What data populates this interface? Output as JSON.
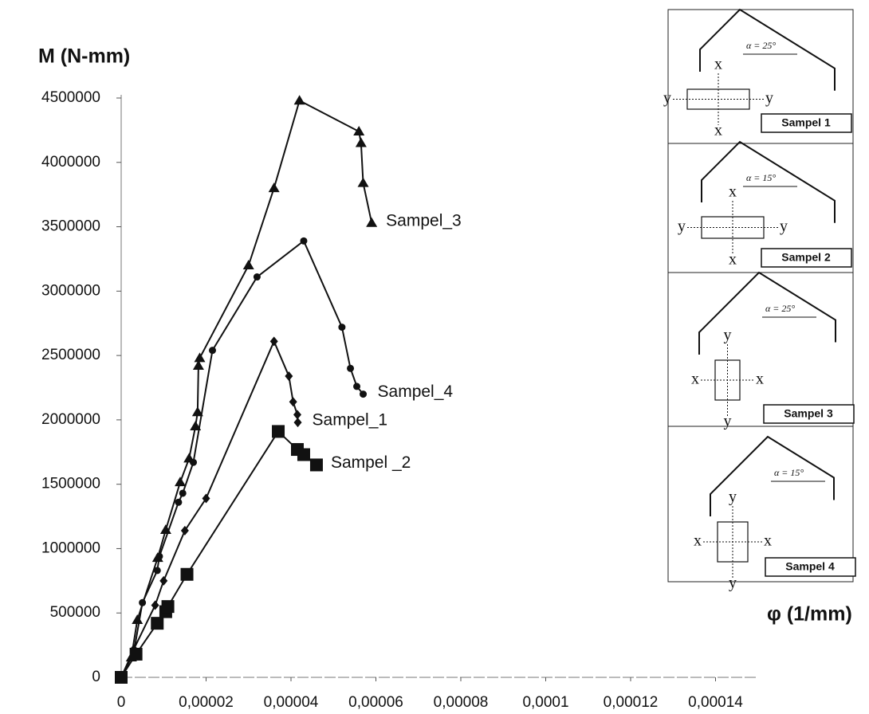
{
  "chart_data": {
    "type": "line",
    "y_label": "M (N-mm)",
    "x_label": "φ (1/mm)",
    "xlim": [
      0,
      0.00015
    ],
    "ylim": [
      0,
      4500000
    ],
    "xticks": [
      0,
      {
        "value": 2e-05,
        "label": "0,00002"
      },
      {
        "value": 4e-05,
        "label": "0,00004"
      },
      {
        "value": 6e-05,
        "label": "0,00006"
      },
      {
        "value": 8e-05,
        "label": "0,00008"
      },
      {
        "value": 0.0001,
        "label": "0,0001"
      },
      {
        "value": 0.00012,
        "label": "0,00012"
      },
      {
        "value": 0.00014,
        "label": "0,00014"
      }
    ],
    "yticks": [
      0,
      500000,
      1000000,
      1500000,
      2000000,
      2500000,
      3000000,
      3500000,
      4000000,
      4500000
    ],
    "series": [
      {
        "name": "Sampel_3",
        "marker": "triangle",
        "color": "#111111",
        "x": [
          0,
          2.4e-06,
          3.8e-06,
          8.6e-06,
          1.05e-05,
          1.39e-05,
          1.6e-05,
          1.75e-05,
          1.8e-05,
          1.82e-05,
          1.85e-05,
          3e-05,
          3.6e-05,
          4.2e-05,
          5.6e-05,
          5.65e-05,
          5.7e-05,
          5.9e-05
        ],
        "values": [
          0,
          155000,
          446000,
          928000,
          1145000,
          1516000,
          1700000,
          1950000,
          2060000,
          2420000,
          2480000,
          3200000,
          3800000,
          4480000,
          4240000,
          4150000,
          3840000,
          3530000
        ]
      },
      {
        "name": "Sampel_4",
        "marker": "circle",
        "color": "#111111",
        "x": [
          0,
          3e-06,
          5e-06,
          8.5e-06,
          9e-06,
          1.35e-05,
          1.45e-05,
          1.7e-05,
          2.15e-05,
          3.2e-05,
          4.3e-05,
          5.2e-05,
          5.4e-05,
          5.55e-05,
          5.7e-05
        ],
        "values": [
          0,
          200000,
          580000,
          830000,
          940000,
          1360000,
          1430000,
          1670000,
          2540000,
          3110000,
          3390000,
          2720000,
          2400000,
          2260000,
          2200000
        ]
      },
      {
        "name": "Sampel_1",
        "marker": "diamond",
        "color": "#111111",
        "x": [
          0,
          3e-06,
          8e-06,
          1e-05,
          1.5e-05,
          2e-05,
          3.6e-05,
          3.95e-05,
          4.05e-05,
          4.15e-05,
          4.16e-05
        ],
        "values": [
          0,
          220000,
          560000,
          750000,
          1140000,
          1390000,
          2610000,
          2340000,
          2140000,
          2040000,
          1980000
        ]
      },
      {
        "name": "Sampel _2",
        "marker": "square",
        "color": "#111111",
        "x": [
          0,
          3.5e-06,
          8.5e-06,
          1.05e-05,
          1.1e-05,
          1.55e-05,
          3.7e-05,
          4.15e-05,
          4.3e-05,
          4.6e-05
        ],
        "values": [
          0,
          180000,
          420000,
          510000,
          550000,
          800000,
          1910000,
          1770000,
          1730000,
          1650000
        ]
      }
    ],
    "insets": [
      {
        "angle": "α = 25°",
        "caption": "Sampel 1",
        "labels": [
          "x",
          "x",
          "y",
          "y"
        ]
      },
      {
        "angle": "α = 15°",
        "caption": "Sampel 2",
        "labels": [
          "x",
          "x",
          "y",
          "y"
        ]
      },
      {
        "angle": "α = 25°",
        "caption": "Sampel 3",
        "labels": [
          "y",
          "y",
          "x",
          "x"
        ]
      },
      {
        "angle": "α = 15°",
        "caption": "Sampel 4",
        "labels": [
          "y",
          "y",
          "x",
          "x"
        ]
      }
    ]
  }
}
